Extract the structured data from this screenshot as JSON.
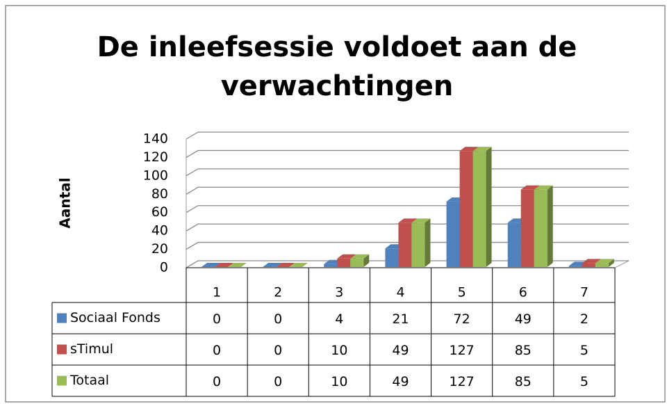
{
  "chart_data": {
    "type": "bar3d",
    "title": "De inleefsessie voldoet aan de verwachtingen",
    "y_label": "Aantal",
    "categories": [
      "1",
      "2",
      "3",
      "4",
      "5",
      "6",
      "7"
    ],
    "series": [
      {
        "name": "Sociaal Fonds",
        "color": "#4f81bd",
        "values": [
          0,
          0,
          4,
          21,
          72,
          49,
          2
        ]
      },
      {
        "name": "sTimul",
        "color": "#c0504d",
        "values": [
          0,
          0,
          10,
          49,
          127,
          85,
          5
        ]
      },
      {
        "name": "Totaal",
        "color": "#9bbb59",
        "values": [
          0,
          0,
          10,
          49,
          127,
          85,
          5
        ]
      }
    ],
    "ylim": [
      0,
      140
    ],
    "yticks": [
      0,
      20,
      40,
      60,
      80,
      100,
      120,
      140
    ],
    "grid": true,
    "data_table": true
  }
}
